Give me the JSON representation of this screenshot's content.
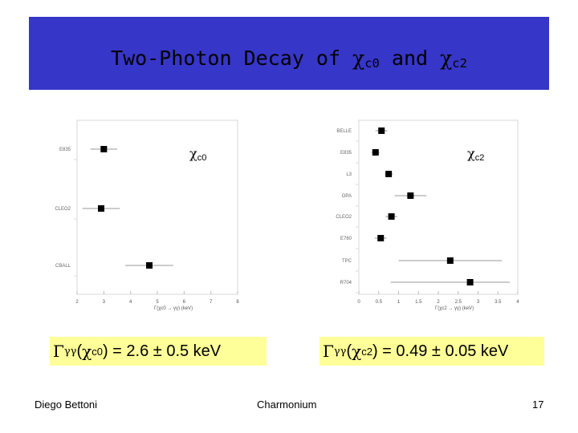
{
  "header": {
    "title_prefix": "Two-Photon Decay of ",
    "chi": "χ",
    "sub_c0": "c0",
    "and": " and ",
    "sub_c2": "c2",
    "bg_color": "#3636c8"
  },
  "results": {
    "left": {
      "gamma": "Γ",
      "gg": "γγ",
      "chi": "χ",
      "sub": "c0",
      "text": ") = 2.6 ± 0.5 keV"
    },
    "right": {
      "gamma": "Γ",
      "gg": "γγ",
      "chi": "χ",
      "sub": "c2",
      "text": ") = 0.49 ± 0.05 keV"
    },
    "box_color": "#ffff99"
  },
  "footer": {
    "author": "Diego Bettoni",
    "topic": "Charmonium",
    "page": "17"
  },
  "chart_data": [
    {
      "type": "scatter",
      "panel_label": "χc0",
      "xlabel": "Γ(χc0 → γγ) (keV)",
      "xlim": [
        2,
        8
      ],
      "xticks": [
        2,
        3,
        4,
        5,
        6,
        7,
        8
      ],
      "experiments": [
        "E835",
        "CLEO2",
        "CBALL"
      ],
      "values": [
        3.0,
        2.9,
        4.7
      ],
      "errors": [
        0.5,
        0.7,
        0.9
      ]
    },
    {
      "type": "scatter",
      "panel_label": "χc2",
      "xlabel": "Γ(χc2 → γγ) (keV)",
      "xlim": [
        0,
        4
      ],
      "xticks": [
        "0",
        "0.5",
        "1",
        "1.5",
        "2",
        "2.5",
        "3",
        "3.5",
        "4"
      ],
      "experiments": [
        "BELLE",
        "E835",
        "L3",
        "OPA",
        "CLEO2",
        "E760",
        "TPC",
        "R704"
      ],
      "values": [
        0.57,
        0.42,
        0.75,
        1.3,
        0.82,
        0.55,
        2.3,
        2.8
      ],
      "errors": [
        0.15,
        0.1,
        0.1,
        0.4,
        0.15,
        0.15,
        1.3,
        2.0
      ]
    }
  ]
}
